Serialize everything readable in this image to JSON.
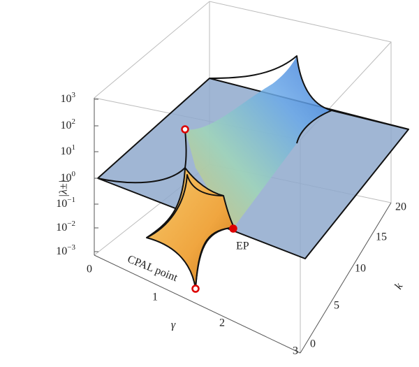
{
  "figure": {
    "z_axis": {
      "label": "|λ±|",
      "ticks": [
        {
          "base": "10",
          "exponent": "3"
        },
        {
          "base": "10",
          "exponent": "2"
        },
        {
          "base": "10",
          "exponent": "1"
        },
        {
          "base": "10",
          "exponent": "0"
        },
        {
          "base": "10",
          "exponent": "−1"
        },
        {
          "base": "10",
          "exponent": "−2"
        },
        {
          "base": "10",
          "exponent": "−3"
        }
      ]
    },
    "gamma_axis": {
      "label": "γ",
      "ticks": [
        "0",
        "1",
        "2",
        "3"
      ]
    },
    "k_axis": {
      "label": "k",
      "ticks": [
        "0",
        "5",
        "10",
        "15",
        "20"
      ]
    },
    "annotations": {
      "cpal": "CPAL point",
      "ep": "EP"
    }
  }
}
